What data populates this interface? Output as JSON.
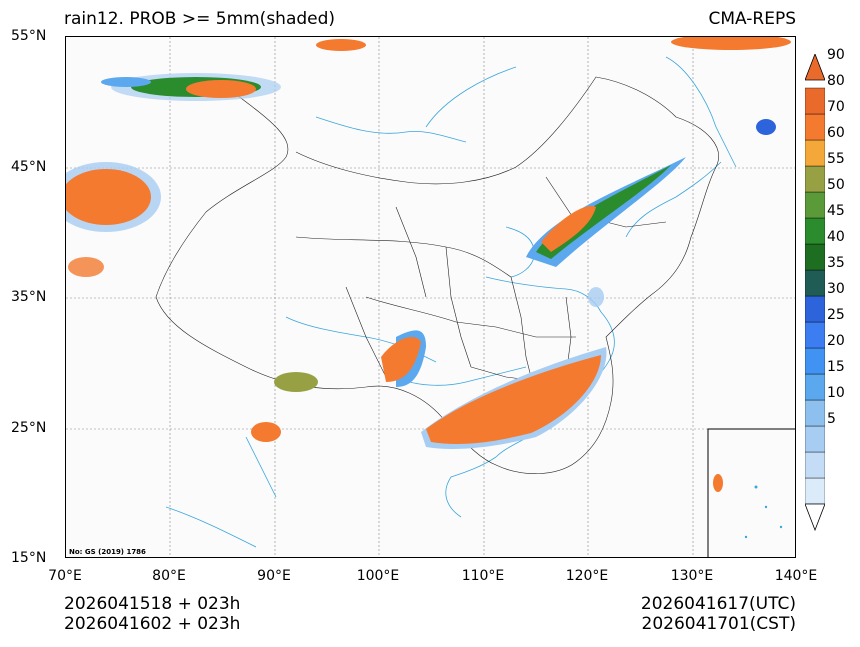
{
  "title": "rain12. PROB >= 5mm(shaded)",
  "model": "CMA-REPS",
  "map_review_number": "No: GS (2019) 1786",
  "lat_labels": [
    "55°N",
    "45°N",
    "35°N",
    "25°N",
    "15°N"
  ],
  "lon_labels": [
    "70°E",
    "80°E",
    "90°E",
    "100°E",
    "110°E",
    "120°E",
    "130°E",
    "140°E"
  ],
  "colorbar": {
    "levels": [
      "5",
      "10",
      "15",
      "20",
      "25",
      "30",
      "35",
      "40",
      "45",
      "50",
      "55",
      "60",
      "70",
      "80",
      "90"
    ],
    "colors": [
      "#dcebfa",
      "#c4dcf6",
      "#a8cdf2",
      "#8ec0ef",
      "#5ba8ee",
      "#4193f3",
      "#3c7ef2",
      "#2d64dc",
      "#205c56",
      "#1e6e22",
      "#2b8c2e",
      "#5a9a38",
      "#98a044",
      "#f5a83a",
      "#f47a30",
      "#ea6a2c"
    ]
  },
  "footer": {
    "init_utc": "2026041518  +  023h",
    "init_cst": "2026041602  +  023h",
    "valid_utc": "2026041617(UTC)",
    "valid_cst": "2026041701(CST)"
  }
}
